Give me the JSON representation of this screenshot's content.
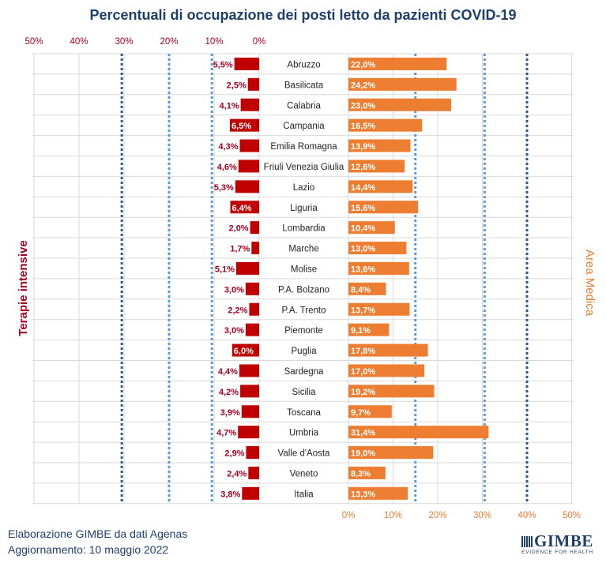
{
  "title": "Percentuali di occupazione dei posti letto da pazienti COVID-19",
  "left_axis_label": "Terapie intensive",
  "right_axis_label": "Area Medica",
  "footer": {
    "line1": "Elaborazione GIMBE da dati Agenas",
    "line2": "Aggiornamento: 10 maggio 2022"
  },
  "logo": {
    "text": "GIMBE",
    "subtitle": "EVIDENCE FOR HEALTH"
  },
  "colors": {
    "left_bar": "#c00000",
    "right_bar": "#ed7d31",
    "left_text": "#a50021",
    "right_text": "#ed7d31",
    "title": "#1f3f6b",
    "ref_dark": "#2e5a8c",
    "ref_light": "#5b9bd5"
  },
  "chart_data": {
    "type": "bar",
    "orientation": "horizontal",
    "categories": [
      "Abruzzo",
      "Basilicata",
      "Calabria",
      "Campania",
      "Emilia Romagna",
      "Friuli Venezia Giulia",
      "Lazio",
      "Liguria",
      "Lombardia",
      "Marche",
      "Molise",
      "P.A. Bolzano",
      "P.A. Trento",
      "Piemonte",
      "Puglia",
      "Sardegna",
      "Sicilia",
      "Toscana",
      "Umbria",
      "Valle d'Aosta",
      "Veneto",
      "Italia"
    ],
    "series": [
      {
        "name": "Terapie intensive",
        "side": "left",
        "values": [
          5.5,
          2.5,
          4.1,
          6.5,
          4.3,
          4.6,
          5.3,
          6.4,
          2.0,
          1.7,
          5.1,
          3.0,
          2.2,
          3.0,
          6.0,
          4.4,
          4.2,
          3.9,
          4.7,
          2.9,
          2.4,
          3.8
        ],
        "labels": [
          "5,5%",
          "2,5%",
          "4,1%",
          "6,5%",
          "4,3%",
          "4,6%",
          "5,3%",
          "6,4%",
          "2,0%",
          "1,7%",
          "5,1%",
          "3,0%",
          "2,2%",
          "3,0%",
          "6,0%",
          "4,4%",
          "4,2%",
          "3,9%",
          "4,7%",
          "2,9%",
          "2,4%",
          "3,8%"
        ],
        "ticks": [
          "50%",
          "40%",
          "30%",
          "20%",
          "10%",
          "0%"
        ],
        "xlim": [
          0,
          50
        ],
        "thresholds": [
          15,
          30
        ]
      },
      {
        "name": "Area Medica",
        "side": "right",
        "values": [
          22.0,
          24.2,
          23.0,
          16.5,
          13.9,
          12.6,
          14.4,
          15.6,
          10.4,
          13.0,
          13.6,
          8.4,
          13.7,
          9.1,
          17.8,
          17.0,
          19.2,
          9.7,
          31.4,
          19.0,
          8.3,
          13.3
        ],
        "labels": [
          "22,0%",
          "24,2%",
          "23,0%",
          "16,5%",
          "13,9%",
          "12,6%",
          "14,4%",
          "15,6%",
          "10,4%",
          "13,0%",
          "13,6%",
          "8,4%",
          "13,7%",
          "9,1%",
          "17,8%",
          "17,0%",
          "19,2%",
          "9,7%",
          "31,4%",
          "19,0%",
          "8,3%",
          "13,3%"
        ],
        "ticks": [
          "0%",
          "10%",
          "20%",
          "30%",
          "40%",
          "50%"
        ],
        "xlim": [
          0,
          50
        ],
        "thresholds": [
          15,
          40
        ]
      }
    ],
    "grid": true
  }
}
